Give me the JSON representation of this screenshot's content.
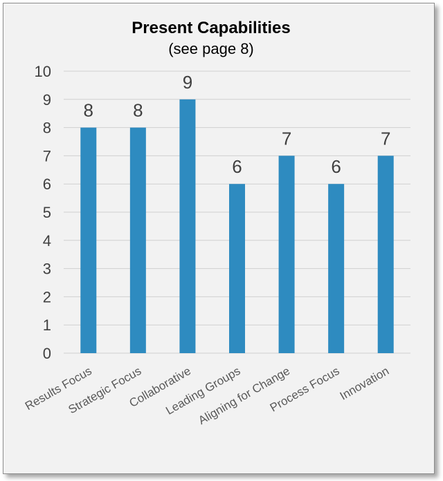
{
  "chart_data": {
    "type": "bar",
    "title": "Present Capabilities",
    "subtitle": "(see page 8)",
    "categories": [
      "Results Focus",
      "Strategic Focus",
      "Collaborative",
      "Leading Groups",
      "Aligning for Change",
      "Process Focus",
      "Innovation"
    ],
    "values": [
      8,
      8,
      9,
      6,
      7,
      6,
      7
    ],
    "ylim": [
      0,
      10
    ],
    "yticks": [
      0,
      1,
      2,
      3,
      4,
      5,
      6,
      7,
      8,
      9,
      10
    ],
    "xlabel": "",
    "ylabel": "",
    "grid": true,
    "bar_color": "#2e8bc0",
    "background_color": "#f2f2f2"
  }
}
